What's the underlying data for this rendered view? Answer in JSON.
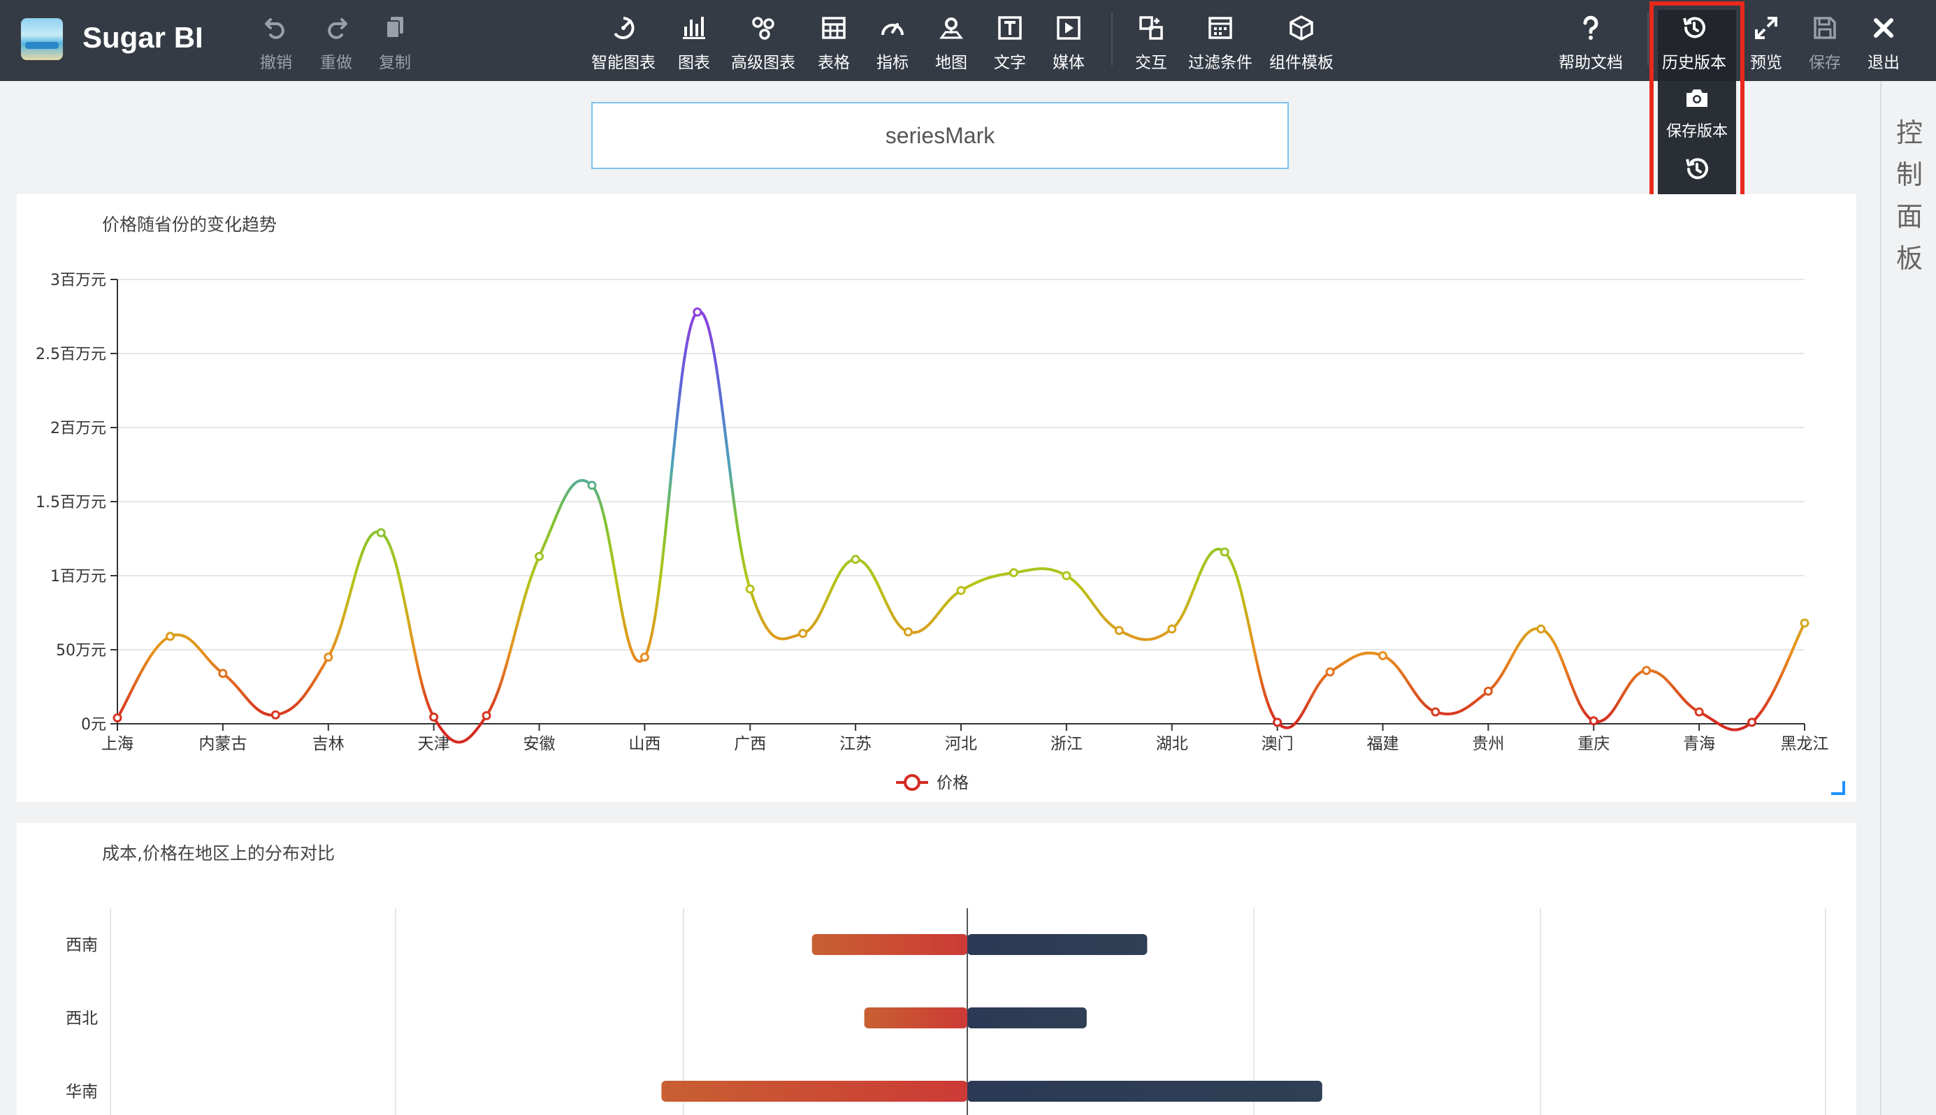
{
  "app": {
    "title": "Sugar BI"
  },
  "toolbar": {
    "undo": "撤销",
    "redo": "重做",
    "copy": "复制",
    "smart_chart": "智能图表",
    "chart": "图表",
    "advanced_chart": "高级图表",
    "table": "表格",
    "indicator": "指标",
    "map": "地图",
    "text": "文字",
    "media": "媒体",
    "interaction": "交互",
    "filter": "过滤条件",
    "component_template": "组件模板",
    "help": "帮助文档",
    "history": "历史版本",
    "preview": "预览",
    "save": "保存",
    "exit": "退出"
  },
  "history_menu": {
    "save_version": "保存版本",
    "version_list": "版本列表"
  },
  "right_panel": {
    "label": "控制面板"
  },
  "dashboard": {
    "title": "seriesMark"
  },
  "colors": {
    "topbar": "#353b45",
    "highlight": "#e8291b",
    "accent": "#1e90ff"
  },
  "chart_data": [
    {
      "type": "line",
      "title": "价格随省份的变化趋势",
      "categories": [
        "上海",
        "",
        "内蒙古",
        "",
        "吉林",
        "",
        "天津",
        "",
        "安徽",
        "",
        "山西",
        "",
        "广西",
        "",
        "江苏",
        "",
        "河北",
        "",
        "浙江",
        "",
        "湖北",
        "",
        "澳门",
        "",
        "福建",
        "",
        "贵州",
        "",
        "重庆",
        "",
        "青海",
        "",
        "黑龙江"
      ],
      "x_labels": [
        "上海",
        "内蒙古",
        "吉林",
        "天津",
        "安徽",
        "山西",
        "广西",
        "江苏",
        "河北",
        "浙江",
        "湖北",
        "澳门",
        "福建",
        "贵州",
        "重庆",
        "青海",
        "黑龙江"
      ],
      "series": [
        {
          "name": "价格",
          "values": [
            40000,
            590000,
            340000,
            60000,
            450000,
            1290000,
            45000,
            55000,
            1130000,
            1610000,
            450000,
            2780000,
            910000,
            610000,
            1110000,
            620000,
            900000,
            1020000,
            1000000,
            630000,
            640000,
            1160000,
            10000,
            350000,
            460000,
            80000,
            220000,
            640000,
            20000,
            360000,
            80000,
            10000,
            680000
          ]
        }
      ],
      "y_ticks": [
        "0元",
        "50万元",
        "1百万元",
        "1.5百万元",
        "2百万元",
        "2.5百万元",
        "3百万元"
      ],
      "ylim": [
        0,
        3000000
      ],
      "legend": "bottom-center",
      "grid": true
    },
    {
      "type": "bar",
      "title": "成本,价格在地区上的分布对比",
      "categories": [
        "西南",
        "西北",
        "华南"
      ],
      "series": [
        {
          "name": "成本",
          "values": [
            950,
            630,
            1870
          ]
        },
        {
          "name": "价格",
          "values": [
            1100,
            730,
            2170
          ]
        }
      ]
    }
  ]
}
